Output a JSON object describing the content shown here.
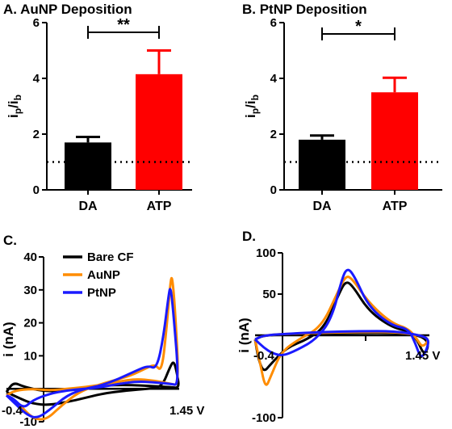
{
  "chart_data": [
    {
      "panel": "A",
      "type": "bar",
      "title": "A. AuNP Deposition",
      "categories": [
        "DA",
        "ATP"
      ],
      "values": [
        1.7,
        4.15
      ],
      "errors": [
        0.2,
        0.85
      ],
      "colors": [
        "#000000",
        "#ff0000"
      ],
      "ylabel": "ip/ib",
      "ylim": [
        0,
        6
      ],
      "yticks": [
        "0",
        "2",
        "4",
        "6"
      ],
      "reference_line": 1,
      "significance": "**"
    },
    {
      "panel": "B",
      "type": "bar",
      "title": "B. PtNP Deposition",
      "categories": [
        "DA",
        "ATP"
      ],
      "values": [
        1.8,
        3.5
      ],
      "errors": [
        0.15,
        0.52
      ],
      "colors": [
        "#000000",
        "#ff0000"
      ],
      "ylabel": "ip/ib",
      "ylim": [
        0,
        6
      ],
      "yticks": [
        "0",
        "2",
        "4",
        "6"
      ],
      "reference_line": 1,
      "significance": "*"
    },
    {
      "panel": "C",
      "type": "line",
      "title": "C.",
      "ylabel": "i (nA)",
      "ylim": [
        -10,
        40
      ],
      "yticks": [
        "-10",
        "10",
        "20",
        "30",
        "40"
      ],
      "x_start_label": "-0.4",
      "x_end_label": "1.45 V",
      "series": [
        {
          "name": "Bare CF",
          "color": "#000000",
          "points": [
            [
              0,
              -1
            ],
            [
              0.08,
              -3
            ],
            [
              0.15,
              -4.5
            ],
            [
              0.25,
              -5
            ],
            [
              0.4,
              -3.5
            ],
            [
              0.55,
              -1.5
            ],
            [
              0.7,
              -0.5
            ],
            [
              0.82,
              0
            ],
            [
              0.9,
              0.5
            ],
            [
              0.95,
              7
            ],
            [
              0.97,
              8.5
            ],
            [
              0.99,
              4
            ],
            [
              1.0,
              0.2
            ],
            [
              0.95,
              0.5
            ],
            [
              0.85,
              0.8
            ],
            [
              0.7,
              1.2
            ],
            [
              0.55,
              1
            ],
            [
              0.45,
              0
            ],
            [
              0.35,
              -0.5
            ],
            [
              0.22,
              -0.8
            ],
            [
              0.1,
              0.6
            ],
            [
              0.04,
              2
            ],
            [
              0,
              -1
            ]
          ]
        },
        {
          "name": "AuNP",
          "color": "#ff8c00",
          "points": [
            [
              0,
              -2
            ],
            [
              0.08,
              -5
            ],
            [
              0.15,
              -9
            ],
            [
              0.23,
              -9.5
            ],
            [
              0.32,
              -5
            ],
            [
              0.42,
              -1
            ],
            [
              0.52,
              1
            ],
            [
              0.62,
              2.5
            ],
            [
              0.72,
              4
            ],
            [
              0.8,
              6
            ],
            [
              0.86,
              7.5
            ],
            [
              0.9,
              5
            ],
            [
              0.93,
              20
            ],
            [
              0.95,
              33
            ],
            [
              0.96,
              34
            ],
            [
              0.975,
              25
            ],
            [
              1.0,
              1
            ],
            [
              0.95,
              1.5
            ],
            [
              0.85,
              2.5
            ],
            [
              0.75,
              3
            ],
            [
              0.65,
              2.2
            ],
            [
              0.55,
              1.2
            ],
            [
              0.45,
              0.5
            ],
            [
              0.35,
              0
            ],
            [
              0.25,
              -0.5
            ],
            [
              0.15,
              0
            ],
            [
              0.05,
              -0.5
            ],
            [
              0,
              -2
            ]
          ]
        },
        {
          "name": "PtNP",
          "color": "#1a1aff",
          "points": [
            [
              0,
              -2
            ],
            [
              0.05,
              -4.5
            ],
            [
              0.12,
              -8
            ],
            [
              0.18,
              -9
            ],
            [
              0.26,
              -6
            ],
            [
              0.35,
              -2
            ],
            [
              0.45,
              0
            ],
            [
              0.55,
              1
            ],
            [
              0.65,
              3
            ],
            [
              0.75,
              5.5
            ],
            [
              0.82,
              7
            ],
            [
              0.87,
              6
            ],
            [
              0.91,
              16
            ],
            [
              0.94,
              29
            ],
            [
              0.95,
              31
            ],
            [
              0.965,
              24
            ],
            [
              1.0,
              1
            ],
            [
              0.95,
              1.5
            ],
            [
              0.85,
              2
            ],
            [
              0.75,
              2.2
            ],
            [
              0.65,
              1.5
            ],
            [
              0.55,
              0.5
            ],
            [
              0.45,
              0
            ],
            [
              0.35,
              -0.5
            ],
            [
              0.25,
              -1.5
            ],
            [
              0.15,
              -3.5
            ],
            [
              0.1,
              -6
            ],
            [
              0.04,
              -3
            ],
            [
              0,
              -2
            ]
          ]
        }
      ],
      "legend": [
        "Bare CF",
        "AuNP",
        "PtNP"
      ]
    },
    {
      "panel": "D",
      "type": "line",
      "title": "D.",
      "ylabel": "i (nA)",
      "ylim": [
        -100,
        100
      ],
      "yticks": [
        "-100",
        "50",
        "100"
      ],
      "x_start_label": "-0.4",
      "x_end_label": "1.45 V",
      "series": [
        {
          "name": "Bare CF",
          "color": "#000000",
          "points": [
            [
              0,
              -5
            ],
            [
              0.02,
              -30
            ],
            [
              0.05,
              -45
            ],
            [
              0.09,
              -35
            ],
            [
              0.18,
              -15
            ],
            [
              0.3,
              -5
            ],
            [
              0.4,
              10
            ],
            [
              0.48,
              50
            ],
            [
              0.52,
              66
            ],
            [
              0.56,
              60
            ],
            [
              0.65,
              30
            ],
            [
              0.78,
              10
            ],
            [
              0.88,
              5
            ],
            [
              0.93,
              -5
            ],
            [
              0.97,
              -25
            ],
            [
              1.0,
              -10
            ],
            [
              0.95,
              0
            ],
            [
              0.8,
              3
            ],
            [
              0.6,
              3
            ],
            [
              0.4,
              2
            ],
            [
              0.2,
              1
            ],
            [
              0.05,
              0
            ],
            [
              0,
              -5
            ]
          ]
        },
        {
          "name": "AuNP",
          "color": "#ff8c00",
          "points": [
            [
              0,
              -5
            ],
            [
              0.03,
              -35
            ],
            [
              0.06,
              -65
            ],
            [
              0.09,
              -50
            ],
            [
              0.15,
              -20
            ],
            [
              0.25,
              -5
            ],
            [
              0.38,
              10
            ],
            [
              0.47,
              50
            ],
            [
              0.52,
              73
            ],
            [
              0.56,
              68
            ],
            [
              0.65,
              40
            ],
            [
              0.78,
              15
            ],
            [
              0.88,
              8
            ],
            [
              0.93,
              -5
            ],
            [
              0.96,
              -15
            ],
            [
              1.0,
              -5
            ],
            [
              0.95,
              0
            ],
            [
              0.8,
              4
            ],
            [
              0.6,
              4
            ],
            [
              0.4,
              3
            ],
            [
              0.2,
              2
            ],
            [
              0.05,
              0
            ],
            [
              0,
              -5
            ]
          ]
        },
        {
          "name": "PtNP",
          "color": "#1a1aff",
          "points": [
            [
              0,
              -5
            ],
            [
              0.05,
              -15
            ],
            [
              0.1,
              -22
            ],
            [
              0.16,
              -25
            ],
            [
              0.24,
              -18
            ],
            [
              0.35,
              -5
            ],
            [
              0.44,
              20
            ],
            [
              0.5,
              70
            ],
            [
              0.53,
              82
            ],
            [
              0.57,
              72
            ],
            [
              0.65,
              35
            ],
            [
              0.78,
              12
            ],
            [
              0.88,
              8
            ],
            [
              0.92,
              -10
            ],
            [
              0.95,
              -28
            ],
            [
              0.98,
              -20
            ],
            [
              1.0,
              -5
            ],
            [
              0.95,
              0
            ],
            [
              0.8,
              5
            ],
            [
              0.6,
              5
            ],
            [
              0.4,
              4
            ],
            [
              0.2,
              2
            ],
            [
              0.05,
              0
            ],
            [
              0,
              -5
            ]
          ]
        }
      ]
    }
  ]
}
